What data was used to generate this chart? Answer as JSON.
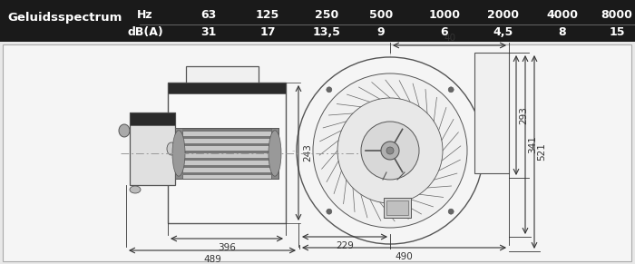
{
  "header_bg": "#1a1a1a",
  "header_label": "Geluidsspectrum",
  "header_label_color": "#ffffff",
  "row1_label": "Hz",
  "row1_values": [
    "63",
    "125",
    "250",
    "500",
    "1000",
    "2000",
    "4000",
    "8000"
  ],
  "row2_label": "dB(A)",
  "row2_values": [
    "31",
    "17",
    "13,5",
    "9",
    "6",
    "4,5",
    "8",
    "15"
  ],
  "table_text_color": "#ffffff",
  "dim_color_dark": "#333333",
  "line_color": "#555555",
  "fig_bg": "#e8e8e8",
  "diagram_bg": "#f5f5f5"
}
